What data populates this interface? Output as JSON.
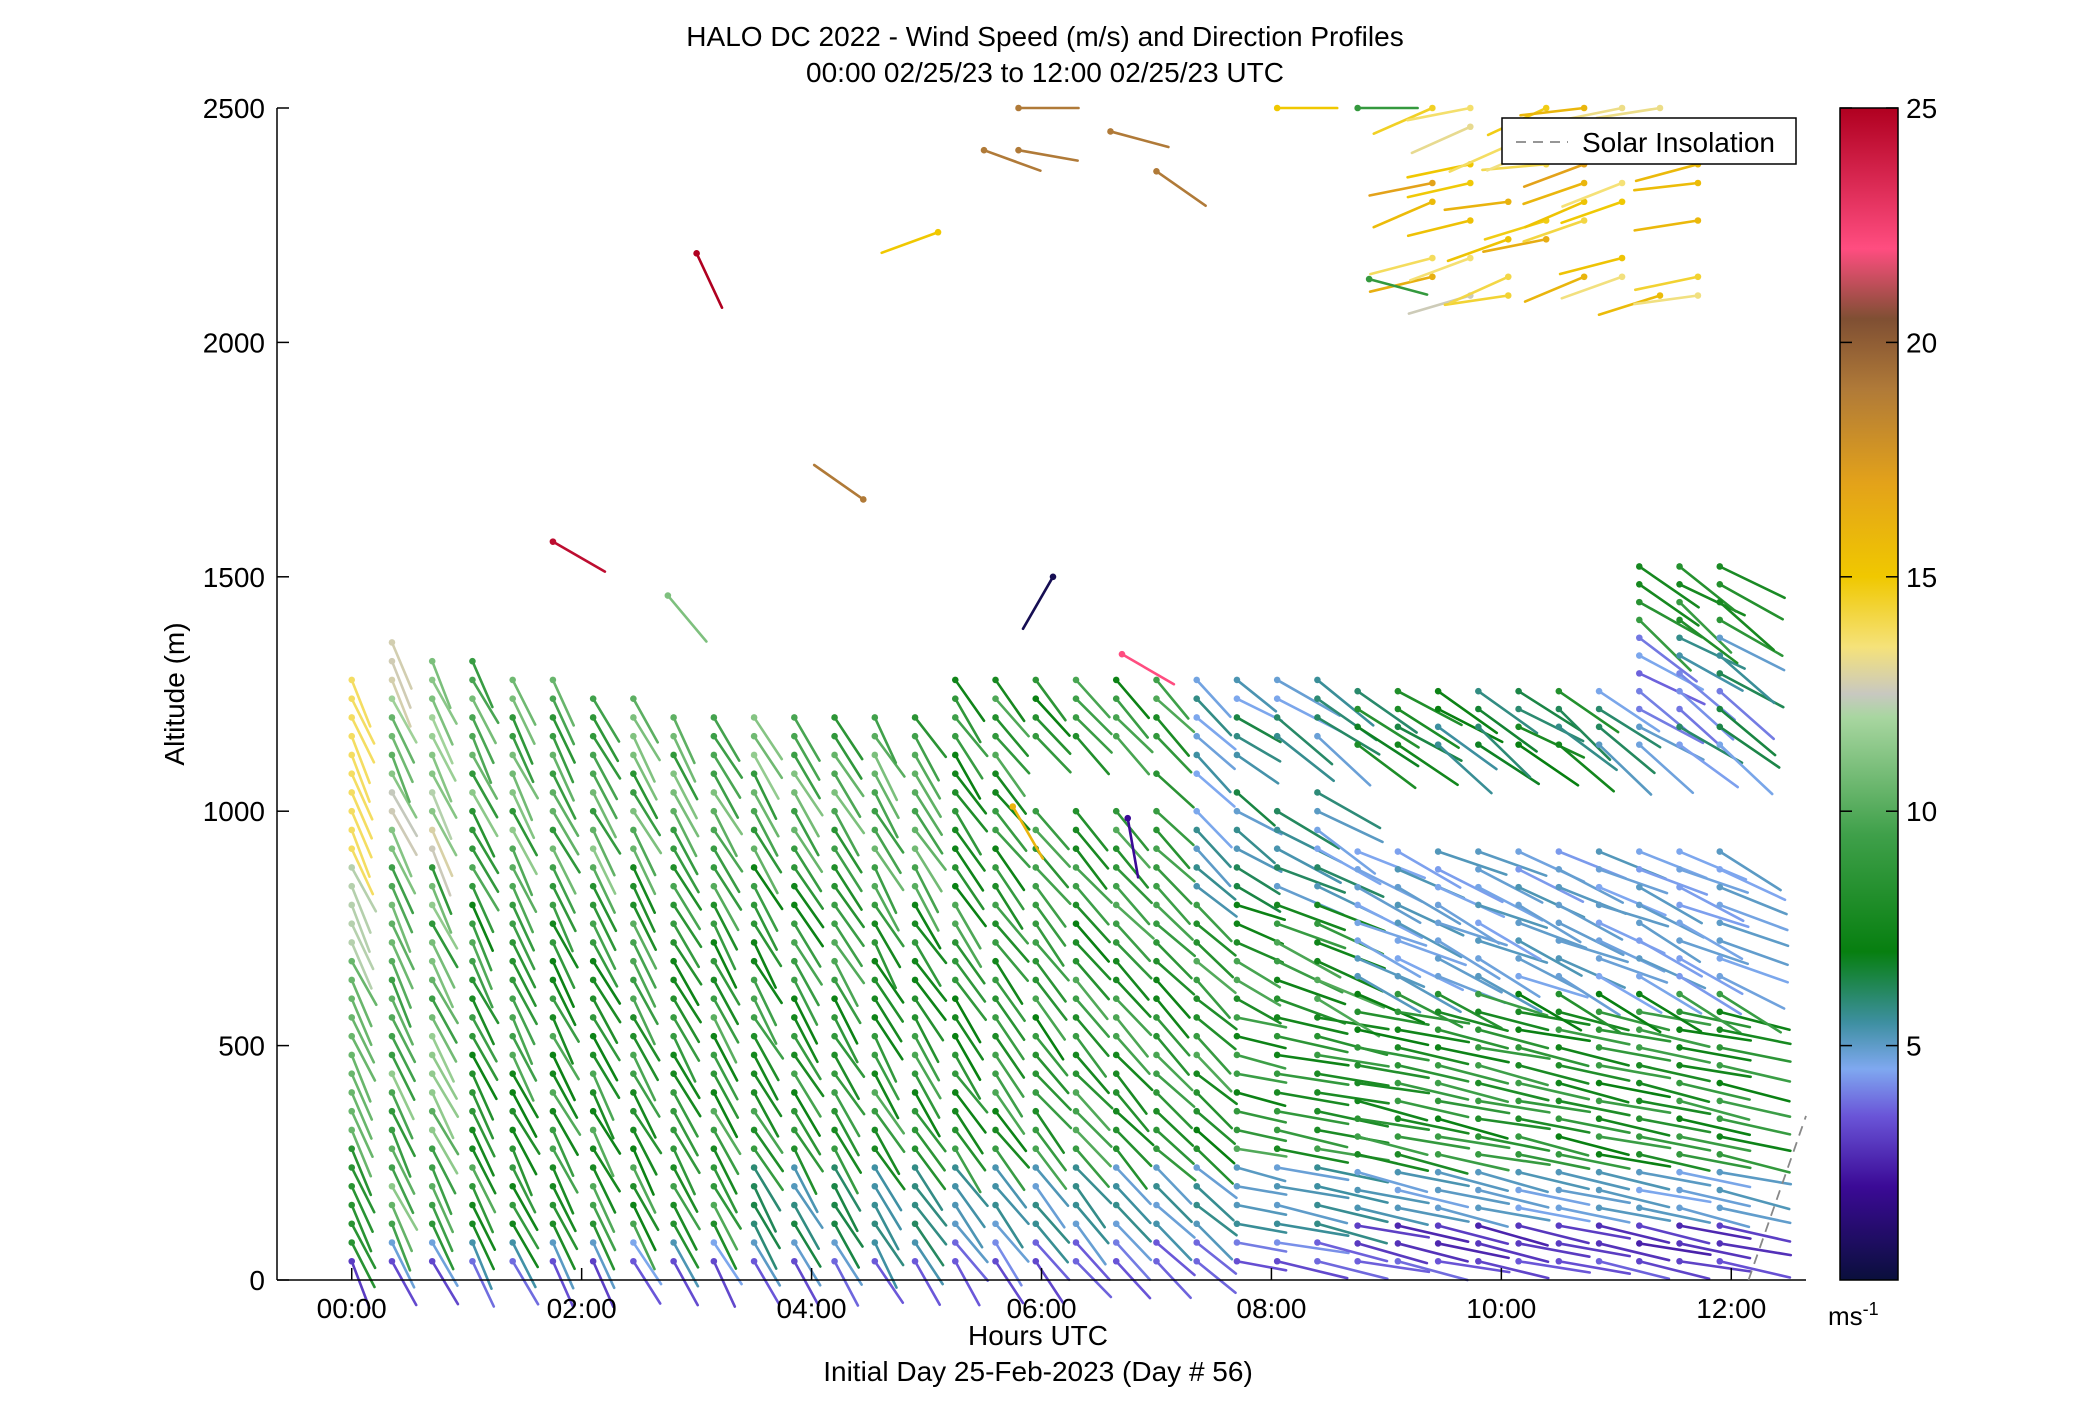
{
  "chart_data": {
    "type": "scatter",
    "subtype": "wind-barb-profile",
    "title": "HALO DC 2022 - Wind Speed (m/s) and Direction Profiles",
    "subtitle": "00:00 02/25/23 to 12:00 02/25/23  UTC",
    "xlabel": "Hours UTC",
    "xlabel2": "Initial Day 25-Feb-2023 (Day # 56)",
    "ylabel": "Altitude (m)",
    "xlim": [
      -0.65,
      12.65
    ],
    "ylim": [
      0,
      2500
    ],
    "xticks": [
      0,
      2,
      4,
      6,
      8,
      10,
      12
    ],
    "xtick_labels": [
      "00:00",
      "02:00",
      "04:00",
      "06:00",
      "08:00",
      "10:00",
      "12:00"
    ],
    "yticks": [
      0,
      500,
      1000,
      1500,
      2000,
      2500
    ],
    "ytick_labels": [
      "0",
      "500",
      "1000",
      "1500",
      "2000",
      "2500"
    ],
    "grid": false,
    "legend": {
      "position": "top-right",
      "entries": [
        {
          "label": "Solar Insolation",
          "style": "dashed",
          "color": "#888888"
        }
      ]
    },
    "solar_insolation": [
      {
        "x": 12.15,
        "y": 0
      },
      {
        "x": 12.65,
        "y": 350
      }
    ],
    "colorbar": {
      "min": 0,
      "max": 25,
      "ticks": [
        5,
        10,
        15,
        20,
        25
      ],
      "tick_labels": [
        "5",
        "10",
        "15",
        "20",
        "25"
      ],
      "unit_label": "ms",
      "unit_exponent": "-1",
      "stops": [
        {
          "value": 0,
          "color": "#0a0f3c"
        },
        {
          "value": 2,
          "color": "#3b0a96"
        },
        {
          "value": 3.5,
          "color": "#6a55d8"
        },
        {
          "value": 4.5,
          "color": "#7fa8f0"
        },
        {
          "value": 5.5,
          "color": "#3d8fa0"
        },
        {
          "value": 7,
          "color": "#077f10"
        },
        {
          "value": 9.5,
          "color": "#3fa04a"
        },
        {
          "value": 12,
          "color": "#a8d6a0"
        },
        {
          "value": 12.5,
          "color": "#c8c8c0"
        },
        {
          "value": 13.5,
          "color": "#f5e27a"
        },
        {
          "value": 15,
          "color": "#f0c800"
        },
        {
          "value": 17,
          "color": "#e3a21a"
        },
        {
          "value": 19,
          "color": "#b07a38"
        },
        {
          "value": 20.5,
          "color": "#7f4f33"
        },
        {
          "value": 22,
          "color": "#ff4d80"
        },
        {
          "value": 25,
          "color": "#b00020"
        }
      ]
    },
    "profile_times": [
      0.0,
      0.35,
      0.7,
      1.05,
      1.4,
      1.75,
      2.1,
      2.45,
      2.8,
      3.15,
      3.5,
      3.85,
      4.2,
      4.55,
      4.9,
      5.25,
      5.6,
      5.95,
      6.3,
      6.65,
      7.0,
      7.35,
      7.7,
      8.05,
      8.4,
      8.75,
      9.1,
      9.45,
      9.8,
      10.15,
      10.5,
      10.85,
      11.2,
      11.55,
      11.9
    ],
    "isolated_points": [
      {
        "x": 1.75,
        "y": 1575,
        "speed": 24.5,
        "dir": 120
      },
      {
        "x": 3.0,
        "y": 2190,
        "speed": 25,
        "dir": 155
      },
      {
        "x": 2.75,
        "y": 1460,
        "speed": 11,
        "dir": 140
      },
      {
        "x": 4.45,
        "y": 1665,
        "speed": 19,
        "dir": 305
      },
      {
        "x": 6.1,
        "y": 1500,
        "speed": 0.5,
        "dir": 210
      },
      {
        "x": 6.7,
        "y": 1335,
        "speed": 22,
        "dir": 120
      },
      {
        "x": 7.0,
        "y": 2365,
        "speed": 19,
        "dir": 125
      },
      {
        "x": 6.6,
        "y": 2450,
        "speed": 19,
        "dir": 105
      },
      {
        "x": 5.8,
        "y": 2410,
        "speed": 19,
        "dir": 100
      },
      {
        "x": 5.5,
        "y": 2410,
        "speed": 19,
        "dir": 110
      },
      {
        "x": 5.8,
        "y": 2500,
        "speed": 19,
        "dir": 90
      },
      {
        "x": 5.1,
        "y": 2235,
        "speed": 15,
        "dir": 250
      },
      {
        "x": 8.85,
        "y": 2135,
        "speed": 9,
        "dir": 105
      },
      {
        "x": 5.75,
        "y": 1010,
        "speed": 16,
        "dir": 150
      },
      {
        "x": 6.75,
        "y": 985,
        "speed": 2,
        "dir": 170
      },
      {
        "x": 8.05,
        "y": 2500,
        "speed": 15,
        "dir": 90
      },
      {
        "x": 8.75,
        "y": 2500,
        "speed": 9,
        "dir": 90
      }
    ],
    "note": "Barbs show wind speed (color) and direction (stick orientation) for each lidar profile time and altitude gate."
  }
}
